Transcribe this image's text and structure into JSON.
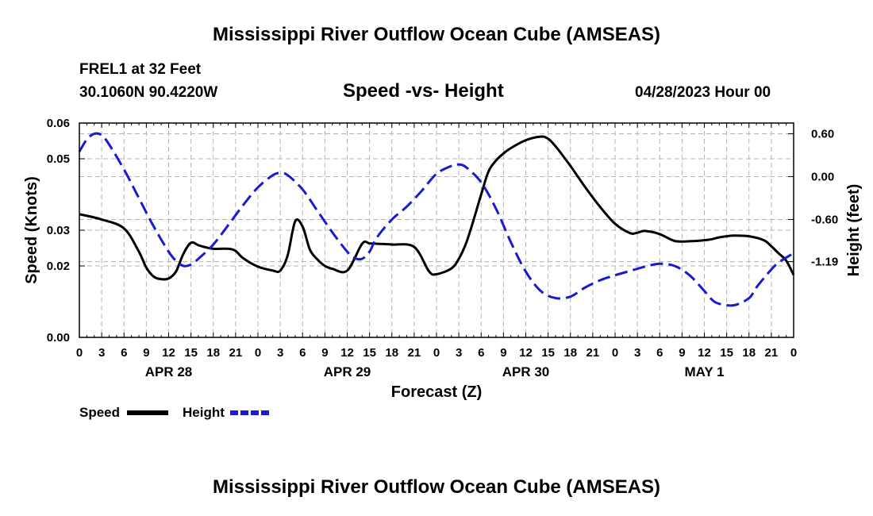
{
  "header": {
    "title": "Mississippi River Outflow Ocean Cube (AMSEAS)",
    "station_line1": "FREL1 at 32 Feet",
    "station_line2": "30.1060N  90.4220W",
    "date": "04/28/2023 Hour 00"
  },
  "footer": {
    "title": "Mississippi River Outflow Ocean Cube (AMSEAS)"
  },
  "chart_data": {
    "type": "line",
    "title": "Speed -vs- Height",
    "xlabel": "Forecast (Z)",
    "ylabel": "Speed (Knots)",
    "y2label": "Height (feet)",
    "x_range": [
      0,
      96
    ],
    "ylim": [
      0,
      0.06
    ],
    "y2lim": [
      -2.25,
      0.75
    ],
    "x_ticks": [
      0,
      3,
      6,
      9,
      12,
      15,
      18,
      21,
      24,
      27,
      30,
      33,
      36,
      39,
      42,
      45,
      48,
      51,
      54,
      57,
      60,
      63,
      66,
      69,
      72,
      75,
      78,
      81,
      84,
      87,
      90,
      93,
      96
    ],
    "x_tick_labels": [
      "0",
      "3",
      "6",
      "9",
      "12",
      "15",
      "18",
      "21",
      "0",
      "3",
      "6",
      "9",
      "12",
      "15",
      "18",
      "21",
      "0",
      "3",
      "6",
      "9",
      "12",
      "15",
      "18",
      "21",
      "0",
      "3",
      "6",
      "9",
      "12",
      "15",
      "18",
      "21",
      "0"
    ],
    "date_labels": [
      {
        "x": 12,
        "label": "APR 28"
      },
      {
        "x": 36,
        "label": "APR 29"
      },
      {
        "x": 60,
        "label": "APR 30"
      },
      {
        "x": 84,
        "label": "MAY 1"
      }
    ],
    "y_ticks": [
      0,
      0.02,
      0.03,
      0.05,
      0.06
    ],
    "y_tick_labels": [
      "0.00",
      "0.02",
      "0.03",
      "0.05",
      "0.06"
    ],
    "y2_ticks": [
      0.6,
      0.0,
      -0.6,
      -1.19
    ],
    "y2_tick_labels": [
      "0.60",
      "0.00",
      "-0.60",
      "-1.19"
    ],
    "colors": {
      "speed": "#000000",
      "height": "#1a1ad0"
    },
    "series": [
      {
        "name": "Speed",
        "axis": "left",
        "style": "solid",
        "x": [
          0,
          3,
          6,
          8,
          9,
          10,
          11,
          12,
          13,
          14,
          15,
          16,
          17,
          18,
          20,
          21,
          22,
          24,
          26,
          27,
          28,
          29,
          30,
          31,
          32,
          33,
          34,
          36,
          38,
          39,
          40,
          42,
          45,
          47,
          48,
          50,
          51,
          52,
          53,
          54,
          55,
          56,
          57,
          58,
          60,
          62,
          63,
          64,
          65,
          66,
          67,
          68,
          70,
          72,
          74,
          75,
          76,
          78,
          80,
          82,
          84,
          85,
          86,
          87,
          88,
          90,
          92,
          93,
          94,
          95,
          96
        ],
        "values": [
          0.0345,
          0.033,
          0.0305,
          0.024,
          0.0195,
          0.017,
          0.0163,
          0.0165,
          0.0185,
          0.0235,
          0.0265,
          0.0258,
          0.0252,
          0.0248,
          0.0248,
          0.0242,
          0.0222,
          0.0198,
          0.0187,
          0.0187,
          0.023,
          0.0325,
          0.031,
          0.0245,
          0.0218,
          0.02,
          0.0192,
          0.0187,
          0.0262,
          0.0263,
          0.0262,
          0.026,
          0.0253,
          0.0185,
          0.0177,
          0.0193,
          0.022,
          0.0265,
          0.033,
          0.04,
          0.0465,
          0.0495,
          0.0515,
          0.053,
          0.0552,
          0.0562,
          0.0556,
          0.0535,
          0.0508,
          0.048,
          0.045,
          0.042,
          0.0365,
          0.0318,
          0.0292,
          0.0293,
          0.0298,
          0.0289,
          0.027,
          0.0269,
          0.0272,
          0.0275,
          0.028,
          0.0283,
          0.0285,
          0.0283,
          0.0272,
          0.0255,
          0.0235,
          0.0215,
          0.0175
        ]
      },
      {
        "name": "Height",
        "axis": "right",
        "style": "dashed",
        "x": [
          0,
          1,
          2,
          3,
          4,
          6,
          8,
          10,
          12,
          13,
          14,
          15,
          16,
          18,
          20,
          22,
          24,
          26,
          27,
          28,
          30,
          32,
          34,
          36,
          37,
          38,
          39,
          40,
          42,
          44,
          46,
          48,
          50,
          51,
          52,
          54,
          56,
          58,
          60,
          62,
          64,
          66,
          68,
          70,
          72,
          74,
          76,
          78,
          80,
          82,
          84,
          85,
          86,
          88,
          90,
          91,
          92,
          93,
          94,
          96
        ],
        "values": [
          0.35,
          0.52,
          0.6,
          0.58,
          0.45,
          0.1,
          -0.3,
          -0.7,
          -1.05,
          -1.18,
          -1.25,
          -1.23,
          -1.15,
          -0.95,
          -0.68,
          -0.4,
          -0.15,
          0.02,
          0.05,
          0.02,
          -0.18,
          -0.48,
          -0.78,
          -1.05,
          -1.14,
          -1.15,
          -1.05,
          -0.85,
          -0.6,
          -0.42,
          -0.2,
          0.04,
          0.15,
          0.17,
          0.13,
          -0.08,
          -0.45,
          -0.92,
          -1.33,
          -1.6,
          -1.7,
          -1.68,
          -1.55,
          -1.45,
          -1.38,
          -1.32,
          -1.26,
          -1.22,
          -1.25,
          -1.38,
          -1.6,
          -1.72,
          -1.78,
          -1.8,
          -1.7,
          -1.55,
          -1.42,
          -1.3,
          -1.2,
          -1.07
        ]
      }
    ],
    "legend": [
      {
        "label": "Speed",
        "series": "Speed"
      },
      {
        "label": "Height",
        "series": "Height"
      }
    ]
  }
}
